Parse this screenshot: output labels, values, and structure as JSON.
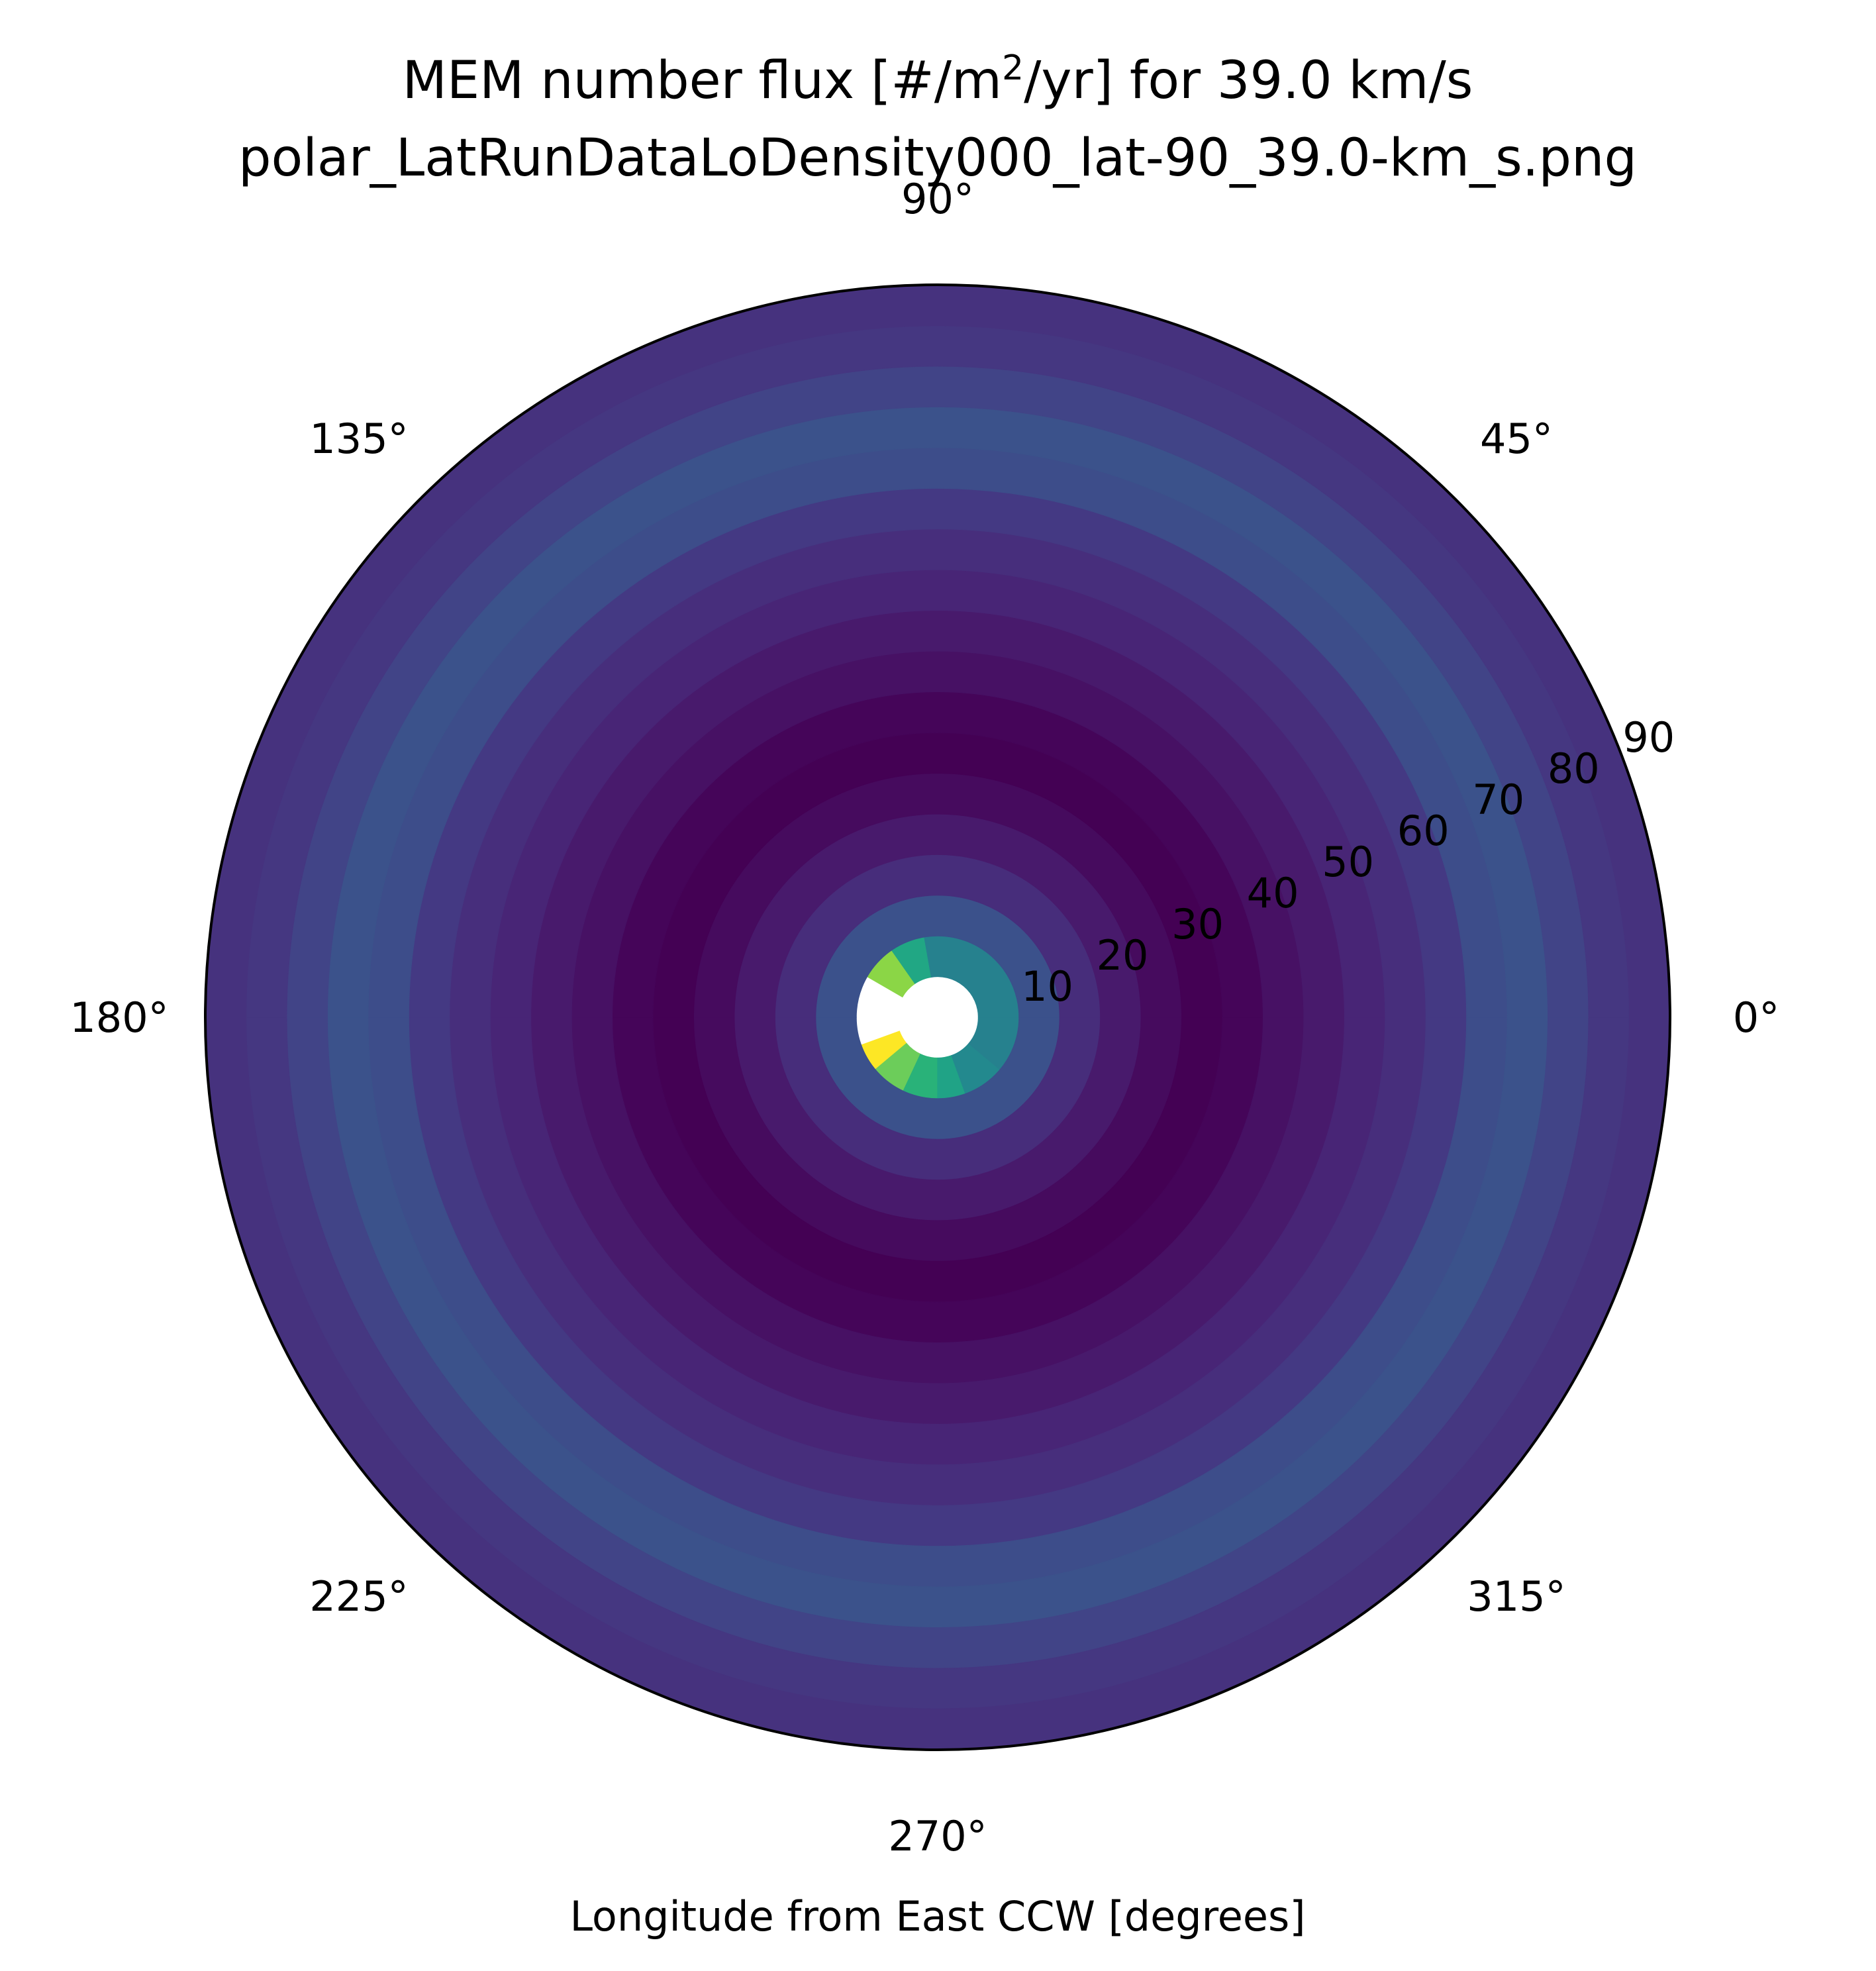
{
  "chart_data": {
    "type": "polar-heatmap",
    "title": {
      "prefix": "MEM number flux [#/m",
      "sup": "2",
      "suffix": "/yr] for 39.0 km/s"
    },
    "subtitle": "polar_LatRunDataLoDensity000_lat-90_39.0-km_s.png",
    "xlabel": "Longitude from East CCW [degrees]",
    "angular_ticks": [
      {
        "deg": 0,
        "label": "0°"
      },
      {
        "deg": 45,
        "label": "45°"
      },
      {
        "deg": 90,
        "label": "90°"
      },
      {
        "deg": 135,
        "label": "135°"
      },
      {
        "deg": 180,
        "label": "180°"
      },
      {
        "deg": 225,
        "label": "225°"
      },
      {
        "deg": 270,
        "label": "270°"
      },
      {
        "deg": 315,
        "label": "315°"
      }
    ],
    "radial_ticks": [
      {
        "value": 10,
        "label": "10"
      },
      {
        "value": 20,
        "label": "20"
      },
      {
        "value": 30,
        "label": "30"
      },
      {
        "value": 40,
        "label": "40"
      },
      {
        "value": 50,
        "label": "50"
      },
      {
        "value": 60,
        "label": "60"
      },
      {
        "value": 70,
        "label": "70"
      },
      {
        "value": 80,
        "label": "80"
      },
      {
        "value": 90,
        "label": "90"
      }
    ],
    "radial_range": [
      0,
      90
    ],
    "angular_range": [
      0,
      360
    ],
    "colormap": "viridis",
    "grid": false,
    "annuli": [
      {
        "r_inner": 0,
        "r_outer": 5,
        "color": null
      },
      {
        "r_inner": 5,
        "r_outer": 10,
        "color": "#26818e",
        "sectors": [
          {
            "from": 100,
            "to": 125,
            "color": "#21a784"
          },
          {
            "from": 125,
            "to": 150,
            "color": "#8bd646"
          },
          {
            "from": 150,
            "to": 200,
            "color": null
          },
          {
            "from": 200,
            "to": 220,
            "color": "#fde725"
          },
          {
            "from": 220,
            "to": 245,
            "color": "#6ccd5a"
          },
          {
            "from": 245,
            "to": 270,
            "color": "#29b279"
          },
          {
            "from": 270,
            "to": 290,
            "color": "#20a386"
          },
          {
            "from": 290,
            "to": 320,
            "color": "#23898e"
          }
        ]
      },
      {
        "r_inner": 10,
        "r_outer": 15,
        "color": "#3b518b"
      },
      {
        "r_inner": 15,
        "r_outer": 20,
        "color": "#472d7b"
      },
      {
        "r_inner": 20,
        "r_outer": 25,
        "color": "#481a6c"
      },
      {
        "r_inner": 25,
        "r_outer": 30,
        "color": "#460b5e"
      },
      {
        "r_inner": 30,
        "r_outer": 35,
        "color": "#440154"
      },
      {
        "r_inner": 35,
        "r_outer": 40,
        "color": "#450559"
      },
      {
        "r_inner": 40,
        "r_outer": 45,
        "color": "#471164"
      },
      {
        "r_inner": 45,
        "r_outer": 50,
        "color": "#481a6c"
      },
      {
        "r_inner": 50,
        "r_outer": 55,
        "color": "#482576"
      },
      {
        "r_inner": 55,
        "r_outer": 60,
        "color": "#472e7c"
      },
      {
        "r_inner": 60,
        "r_outer": 65,
        "color": "#443983"
      },
      {
        "r_inner": 65,
        "r_outer": 70,
        "color": "#3d4d8a"
      },
      {
        "r_inner": 70,
        "r_outer": 75,
        "color": "#3b528b"
      },
      {
        "r_inner": 75,
        "r_outer": 80,
        "color": "#414487"
      },
      {
        "r_inner": 80,
        "r_outer": 85,
        "color": "#453781"
      },
      {
        "r_inner": 85,
        "r_outer": 90,
        "color": "#46327e"
      }
    ],
    "colors": {
      "frame": "#000000",
      "background": "#ffffff"
    }
  }
}
